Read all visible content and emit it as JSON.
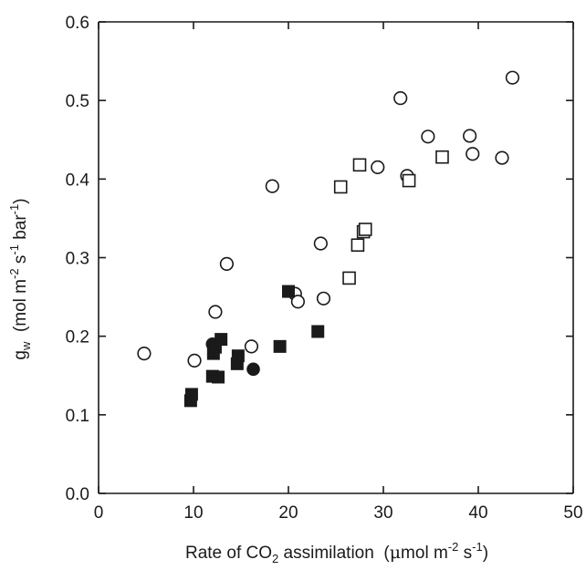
{
  "chart_data": {
    "type": "scatter",
    "title": "",
    "xlabel": {
      "prefix": "Rate of CO",
      "sub": "2",
      "middle": " assimilation  (",
      "mu": "μ",
      "mol": "mol m",
      "exp": "-2",
      "s": " s",
      "exp2": "-1",
      "close": ")"
    },
    "ylabel": {
      "g": "g",
      "gsub": "w",
      "open": "  (mol m",
      "exp1": "-2",
      "s": " s",
      "exp2": "-1",
      "bar": " bar",
      "exp3": "-1",
      "close": ")"
    },
    "xlim": [
      0,
      50
    ],
    "ylim": [
      0,
      0.6
    ],
    "x_ticks": [
      "0",
      "10",
      "20",
      "30",
      "40",
      "50"
    ],
    "y_ticks": [
      "0.0",
      "0.1",
      "0.2",
      "0.3",
      "0.4",
      "0.5",
      "0.6"
    ],
    "grid": false,
    "series": [
      {
        "marker": "open-circle",
        "points": [
          [
            4.8,
            0.178
          ],
          [
            10.1,
            0.169
          ],
          [
            12.3,
            0.231
          ],
          [
            13.5,
            0.292
          ],
          [
            16.1,
            0.187
          ],
          [
            18.3,
            0.391
          ],
          [
            20.7,
            0.254
          ],
          [
            21.0,
            0.244
          ],
          [
            23.4,
            0.318
          ],
          [
            23.7,
            0.248
          ],
          [
            29.4,
            0.415
          ],
          [
            31.8,
            0.503
          ],
          [
            32.5,
            0.404
          ],
          [
            34.7,
            0.454
          ],
          [
            39.1,
            0.455
          ],
          [
            39.4,
            0.432
          ],
          [
            42.5,
            0.427
          ],
          [
            43.6,
            0.529
          ]
        ]
      },
      {
        "marker": "open-square",
        "points": [
          [
            25.5,
            0.39
          ],
          [
            26.4,
            0.274
          ],
          [
            27.3,
            0.316
          ],
          [
            27.5,
            0.418
          ],
          [
            27.9,
            0.333
          ],
          [
            28.1,
            0.336
          ],
          [
            32.7,
            0.398
          ],
          [
            36.2,
            0.428
          ]
        ]
      },
      {
        "marker": "filled-square",
        "points": [
          [
            9.7,
            0.118
          ],
          [
            9.8,
            0.126
          ],
          [
            12.0,
            0.149
          ],
          [
            12.1,
            0.178
          ],
          [
            12.3,
            0.186
          ],
          [
            12.6,
            0.148
          ],
          [
            12.9,
            0.196
          ],
          [
            14.6,
            0.165
          ],
          [
            14.7,
            0.175
          ],
          [
            19.1,
            0.187
          ],
          [
            20.0,
            0.257
          ],
          [
            23.1,
            0.206
          ]
        ]
      },
      {
        "marker": "filled-circle",
        "points": [
          [
            12.0,
            0.19
          ],
          [
            16.3,
            0.158
          ]
        ]
      }
    ]
  }
}
